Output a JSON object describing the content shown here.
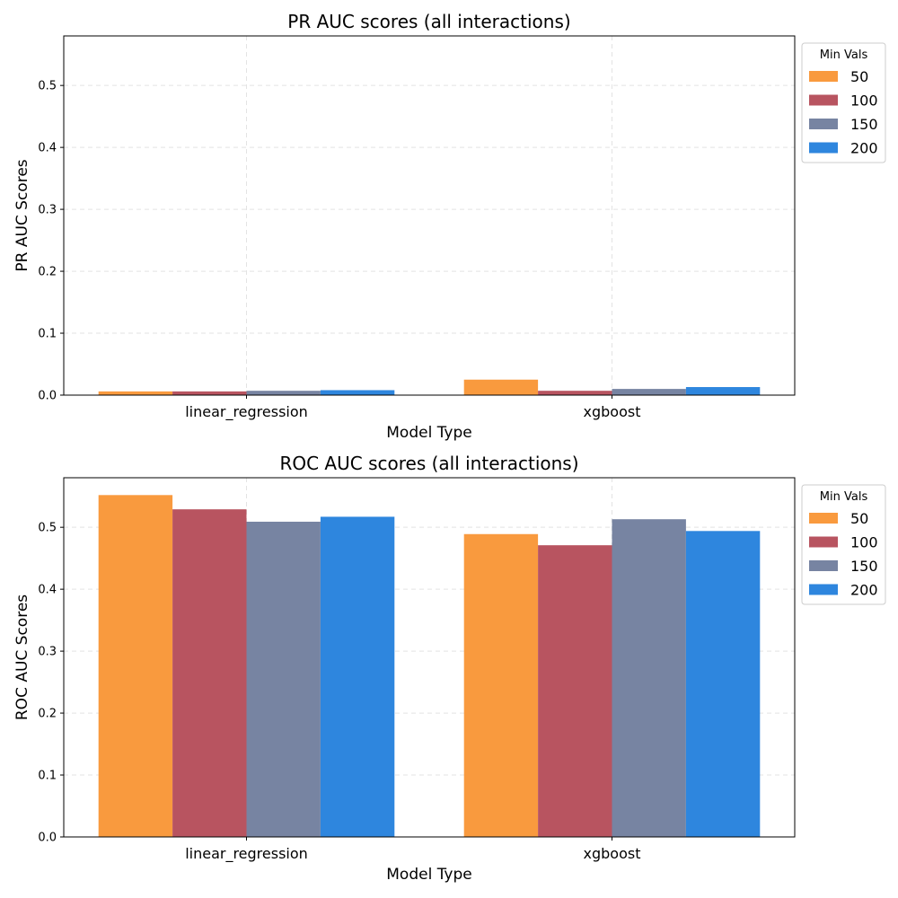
{
  "chart_data": [
    {
      "type": "bar",
      "title": "PR AUC scores (all interactions)",
      "xlabel": "Model Type",
      "ylabel": "PR AUC Scores",
      "categories": [
        "linear_regression",
        "xgboost"
      ],
      "ylim": [
        0,
        0.58
      ],
      "yticks": [
        "0.0",
        "0.1",
        "0.2",
        "0.3",
        "0.4",
        "0.5"
      ],
      "grid": true,
      "legend": {
        "title": "Min Vals",
        "placement": "outside-top-right"
      },
      "series": [
        {
          "name": "50",
          "color": "#F99A3E",
          "values": [
            0.006,
            0.025
          ]
        },
        {
          "name": "100",
          "color": "#B85460",
          "values": [
            0.006,
            0.007
          ]
        },
        {
          "name": "150",
          "color": "#7784A2",
          "values": [
            0.007,
            0.01
          ]
        },
        {
          "name": "200",
          "color": "#2E86DE",
          "values": [
            0.008,
            0.013
          ]
        }
      ]
    },
    {
      "type": "bar",
      "title": "ROC AUC scores (all interactions)",
      "xlabel": "Model Type",
      "ylabel": "ROC AUC Scores",
      "categories": [
        "linear_regression",
        "xgboost"
      ],
      "ylim": [
        0,
        0.58
      ],
      "yticks": [
        "0.0",
        "0.1",
        "0.2",
        "0.3",
        "0.4",
        "0.5"
      ],
      "grid": true,
      "legend": {
        "title": "Min Vals",
        "placement": "outside-top-right"
      },
      "series": [
        {
          "name": "50",
          "color": "#F99A3E",
          "values": [
            0.552,
            0.489
          ]
        },
        {
          "name": "100",
          "color": "#B85460",
          "values": [
            0.529,
            0.471
          ]
        },
        {
          "name": "150",
          "color": "#7784A2",
          "values": [
            0.509,
            0.513
          ]
        },
        {
          "name": "200",
          "color": "#2E86DE",
          "values": [
            0.517,
            0.494
          ]
        }
      ]
    }
  ]
}
